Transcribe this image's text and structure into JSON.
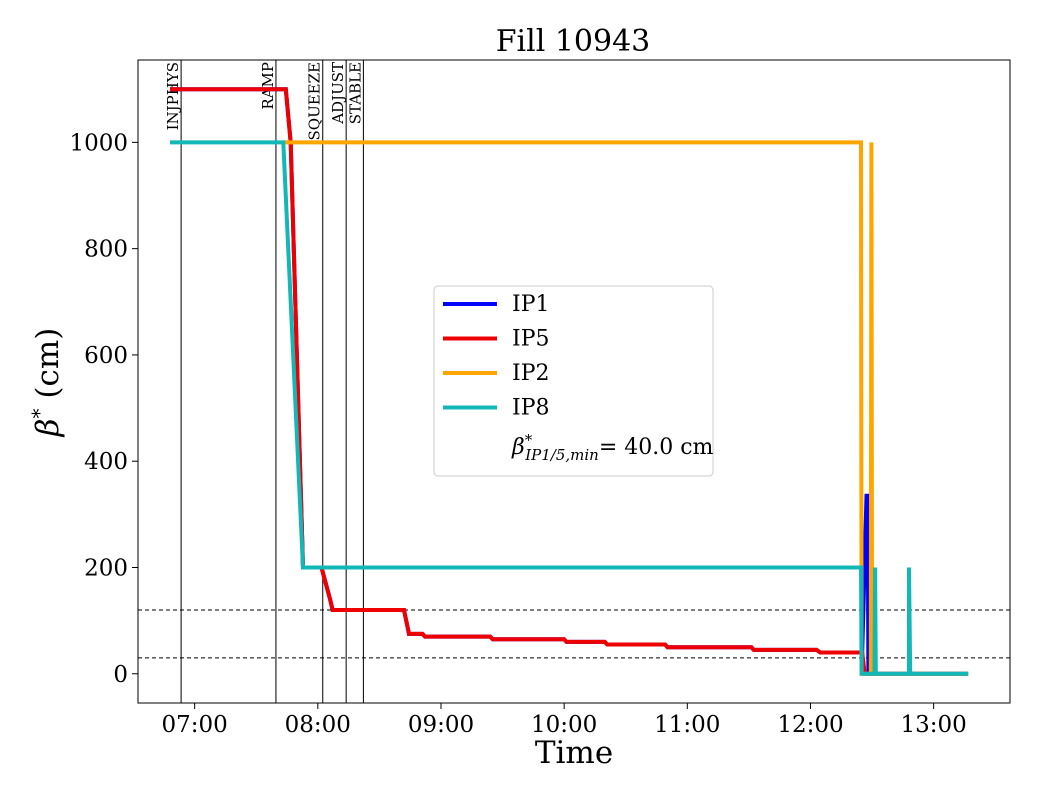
{
  "chart_data": {
    "type": "line",
    "title": "Fill 10943",
    "xlabel": "Time",
    "ylabel": "β* (cm)",
    "x_ticks": [
      "07:00",
      "08:00",
      "09:00",
      "10:00",
      "11:00",
      "12:00",
      "13:00"
    ],
    "x_tick_hours": [
      7,
      8,
      9,
      10,
      11,
      12,
      13
    ],
    "y_ticks": [
      0,
      200,
      400,
      600,
      800,
      1000
    ],
    "xlim_hours": [
      6.54,
      13.62
    ],
    "ylim": [
      -55,
      1155
    ],
    "grid": false,
    "legend_placement": "center",
    "phases": [
      {
        "label": "INJPHYS",
        "time_hours": 6.89
      },
      {
        "label": "RAMP",
        "time_hours": 7.66
      },
      {
        "label": "SQUEEZE",
        "time_hours": 8.04
      },
      {
        "label": "ADJUST",
        "time_hours": 8.23
      },
      {
        "label": "STABLE",
        "time_hours": 8.37
      }
    ],
    "reference_lines": [
      120,
      30
    ],
    "legend_note": "β*IP1/5,min = 40.0 cm",
    "series": [
      {
        "name": "IP1",
        "color": "#0000ff",
        "x_hours": [
          6.8,
          7.74,
          7.78,
          7.88,
          8.03,
          8.1,
          8.12,
          8.7,
          8.74,
          8.85,
          8.87,
          9.4,
          9.42,
          10.0,
          10.02,
          10.33,
          10.35,
          10.82,
          10.84,
          11.52,
          11.54,
          12.05,
          12.08,
          12.42,
          12.455,
          12.465,
          12.47,
          12.5,
          12.8,
          12.8,
          12.8,
          13.28
        ],
        "values": [
          1100,
          1100,
          1000,
          200,
          200,
          140,
          120,
          120,
          75,
          75,
          70,
          70,
          65,
          65,
          60,
          60,
          55,
          55,
          50,
          50,
          45,
          45,
          40,
          40,
          335,
          335,
          0,
          0,
          0,
          200,
          0,
          0
        ]
      },
      {
        "name": "IP5",
        "color": "#ee0000",
        "x_hours": [
          6.8,
          7.74,
          7.78,
          7.88,
          8.03,
          8.1,
          8.12,
          8.7,
          8.74,
          8.85,
          8.87,
          9.4,
          9.42,
          10.0,
          10.02,
          10.33,
          10.35,
          10.82,
          10.84,
          11.52,
          11.54,
          12.05,
          12.08,
          12.42,
          12.44,
          13.28
        ],
        "values": [
          1100,
          1100,
          1000,
          200,
          200,
          140,
          120,
          120,
          75,
          75,
          70,
          70,
          65,
          65,
          60,
          60,
          55,
          55,
          50,
          50,
          45,
          45,
          40,
          40,
          0,
          0
        ]
      },
      {
        "name": "IP2",
        "color": "#ffa500",
        "x_hours": [
          7.72,
          12.41,
          12.415,
          12.49,
          12.495,
          12.5,
          12.53,
          13.28
        ],
        "values": [
          1000,
          1000,
          0,
          0,
          1000,
          0,
          0,
          0
        ]
      },
      {
        "name": "IP8",
        "color": "#12b8b8",
        "x_hours": [
          6.8,
          7.72,
          7.88,
          12.41,
          12.415,
          12.52,
          12.525,
          12.53,
          12.8,
          12.8,
          12.81,
          13.28
        ],
        "values": [
          1000,
          1000,
          200,
          200,
          0,
          0,
          200,
          0,
          0,
          200,
          0,
          0
        ]
      }
    ]
  }
}
